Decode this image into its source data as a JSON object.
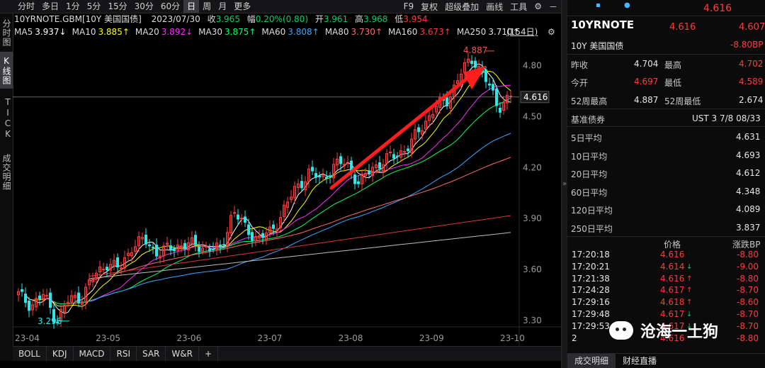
{
  "toolbar": {
    "timeframes": [
      "分时",
      "多日",
      "1分",
      "5分",
      "15分",
      "30分",
      "60分",
      "日",
      "周",
      "月",
      "更多"
    ],
    "active": "日",
    "right": [
      "F9",
      "复权",
      "超级叠加",
      "画线",
      "工具"
    ]
  },
  "sidebar": {
    "tabs": [
      "分时图",
      "K线图",
      "TICK",
      "成交明细"
    ],
    "active": "K线图"
  },
  "info": {
    "symbol": "10YRNOTE.GBM[10Y 美国国债]",
    "date": "2023/07/30",
    "close_label": "收",
    "close": "3.965",
    "change_label": "幅",
    "change": "0.20%(0.80)",
    "open_label": "开",
    "open": "3.961",
    "high_label": "高",
    "high": "3.968",
    "low_label": "低",
    "low": "3.954"
  },
  "ma": [
    {
      "label": "MA5",
      "value": "3.937↓",
      "color": "#ffffff"
    },
    {
      "label": "MA10",
      "value": "3.885↑",
      "color": "#ffff00"
    },
    {
      "label": "MA20",
      "value": "3.892↓",
      "color": "#ff2bff"
    },
    {
      "label": "MA30",
      "value": "3.875↑",
      "color": "#00ff66"
    },
    {
      "label": "MA60",
      "value": "3.808↑",
      "color": "#3aa7ff"
    },
    {
      "label": "MA80",
      "value": "3.730↑",
      "color": "#ff6a6a"
    },
    {
      "label": "MA160",
      "value": "3.673↑",
      "color": "#ff3b3b"
    },
    {
      "label": "MA250",
      "value": "3.710↑",
      "color": "#e0e0e0"
    }
  ],
  "bars_label": "(154日)",
  "chart_data": {
    "type": "candlestick",
    "y_ticks": [
      "4.80",
      "4.50",
      "4.20",
      "3.90",
      "3.60",
      "3.30"
    ],
    "ylim": [
      3.27,
      4.92
    ],
    "x_ticks": [
      "23-04",
      "23-05",
      "23-06",
      "23-07",
      "23-08",
      "23-09",
      "23-10"
    ],
    "current_price": "4.616",
    "high_marker": "4.887",
    "low_marker": "3.296",
    "series_close_keypoints": [
      3.45,
      3.39,
      3.45,
      3.3,
      3.42,
      3.44,
      3.56,
      3.64,
      3.6,
      3.74,
      3.77,
      3.7,
      3.72,
      3.75,
      3.74,
      3.73,
      3.71,
      3.95,
      3.84,
      3.78,
      3.82,
      3.95,
      4.08,
      4.17,
      4.13,
      4.21,
      4.23,
      4.1,
      4.2,
      4.24,
      4.28,
      4.33,
      4.45,
      4.55,
      4.6,
      4.75,
      4.85,
      4.72,
      4.56,
      4.62
    ]
  },
  "bottom_tabs": [
    "BOLL",
    "KDJ",
    "MACD",
    "RSI",
    "SAR",
    "W&R",
    "+"
  ],
  "panel": {
    "price_top": "4.616",
    "title": "10YRNOTE",
    "price": "4.616",
    "price2": "4.607",
    "name": "10Y 美国国债",
    "change_bp": "-8.80BP",
    "prev_close_label": "昨收",
    "prev_close": "4.704",
    "high_label": "最高",
    "high": "4.702",
    "open_label": "今开",
    "open": "4.697",
    "low_label": "最低",
    "low": "4.589",
    "wk52h_label": "52周最高",
    "wk52h": "4.887",
    "wk52l_label": "52周最低",
    "wk52l": "2.674",
    "bench_label": "基准债券",
    "bench": "UST 3 7/8 08/33",
    "avgs": [
      {
        "label": "5日平均",
        "value": "4.631"
      },
      {
        "label": "10日平均",
        "value": "4.693"
      },
      {
        "label": "20日平均",
        "value": "4.612"
      },
      {
        "label": "60日平均",
        "value": "4.348"
      },
      {
        "label": "120日平均",
        "value": "4.089"
      },
      {
        "label": "250日平均",
        "value": "3.837"
      }
    ],
    "tick_headers": [
      "价格",
      "涨跌BP"
    ],
    "ticks": [
      {
        "time": "17:20:18",
        "price": "4.616",
        "bp": "-8.80",
        "dir": ""
      },
      {
        "time": "17:20:21",
        "price": "4.614",
        "bp": "-9.00",
        "dir": "down"
      },
      {
        "time": "17:21:38",
        "price": "4.616",
        "bp": "-8.80",
        "dir": "up"
      },
      {
        "time": "17:24:28",
        "price": "4.617",
        "bp": "-8.70",
        "dir": "up"
      },
      {
        "time": "17:29:16",
        "price": "4.618",
        "bp": "-8.60",
        "dir": "up"
      },
      {
        "time": "17:29:48",
        "price": "4.617",
        "bp": "-8.70",
        "dir": "down"
      },
      {
        "time": "17:29:53",
        "price": "4.617",
        "bp": "-8.70",
        "dir": "down"
      },
      {
        "time": "2",
        "price": "4.616",
        "bp": "-8.80",
        "dir": ""
      }
    ],
    "tabs": [
      "成交明细",
      "财经直播"
    ],
    "active_tab": "成交明细"
  },
  "watermark": "沧海一土狗"
}
